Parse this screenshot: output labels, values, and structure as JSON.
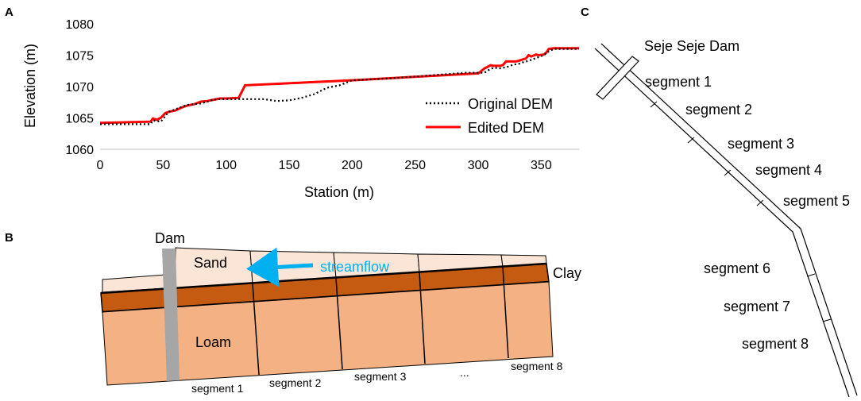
{
  "panels": {
    "a": "A",
    "b": "B",
    "c": "C"
  },
  "chart_data": {
    "type": "line",
    "xlabel": "Station (m)",
    "ylabel": "Elevation (m)",
    "xlim": [
      0,
      380
    ],
    "ylim": [
      1060,
      1080
    ],
    "xticks": [
      "0",
      "50",
      "100",
      "150",
      "200",
      "250",
      "300",
      "350"
    ],
    "yticks": [
      "1060",
      "1065",
      "1070",
      "1075",
      "1080"
    ],
    "legend_position": "right",
    "series": [
      {
        "name": "Original DEM",
        "style": "dotted",
        "color": "#000000",
        "x": [
          0,
          40,
          42,
          45,
          48,
          50,
          52,
          55,
          60,
          64,
          68,
          70,
          75,
          80,
          85,
          90,
          95,
          100,
          110,
          120,
          130,
          140,
          150,
          160,
          170,
          180,
          190,
          200,
          210,
          230,
          250,
          270,
          290,
          305,
          308,
          312,
          318,
          324,
          328,
          332,
          336,
          340,
          344,
          348,
          352,
          356,
          360,
          380
        ],
        "values": [
          1064.0,
          1064.0,
          1064.6,
          1064.5,
          1064.4,
          1064.8,
          1065.4,
          1066.0,
          1066.4,
          1066.7,
          1067.0,
          1067.1,
          1067.2,
          1067.3,
          1067.6,
          1067.9,
          1068.0,
          1068.0,
          1068.0,
          1068.0,
          1068.0,
          1067.7,
          1067.8,
          1068.2,
          1068.8,
          1069.8,
          1070.2,
          1071.0,
          1071.1,
          1071.3,
          1071.6,
          1071.9,
          1072.2,
          1072.2,
          1072.6,
          1073.0,
          1072.9,
          1073.2,
          1073.5,
          1073.6,
          1073.9,
          1074.1,
          1074.4,
          1074.7,
          1075.0,
          1075.6,
          1076.0,
          1076.0
        ]
      },
      {
        "name": "Edited DEM",
        "style": "solid",
        "color": "#ff0000",
        "x": [
          0,
          40,
          42,
          45,
          48,
          52,
          55,
          60,
          64,
          68,
          70,
          75,
          80,
          85,
          90,
          95,
          100,
          110,
          115,
          200,
          300,
          305,
          310,
          312,
          318,
          320,
          322,
          330,
          332,
          338,
          340,
          342,
          346,
          348,
          352,
          354,
          356,
          360,
          380
        ],
        "values": [
          1064.2,
          1064.4,
          1064.9,
          1064.7,
          1065.0,
          1065.8,
          1066.0,
          1066.2,
          1066.6,
          1066.9,
          1067.0,
          1067.2,
          1067.6,
          1067.7,
          1067.9,
          1068.1,
          1068.1,
          1068.2,
          1070.2,
          1071.0,
          1072.1,
          1072.9,
          1073.4,
          1073.3,
          1073.3,
          1073.5,
          1074.0,
          1074.0,
          1074.1,
          1074.5,
          1075.0,
          1074.8,
          1075.1,
          1075.0,
          1075.1,
          1075.4,
          1076.0,
          1076.1,
          1076.1
        ]
      }
    ]
  },
  "diagram_b": {
    "dam_label": "Dam",
    "sand_label": "Sand",
    "streamflow_label": "streamflow",
    "clay_label": "Clay",
    "loam_label": "Loam",
    "segments": [
      "segment 1",
      "segment 2",
      "segment 3",
      "...",
      "segment 8"
    ],
    "colors": {
      "sand": "#fbe5d6",
      "clay": "#c55a11",
      "loam": "#f4b183",
      "dam": "#a6a6a6",
      "arrow": "#00b0f0"
    }
  },
  "diagram_c": {
    "dam_label": "Seje Seje Dam",
    "segments": [
      "segment 1",
      "segment 2",
      "segment 3",
      "segment 4",
      "segment 5",
      "segment 6",
      "segment 7",
      "segment 8"
    ]
  }
}
